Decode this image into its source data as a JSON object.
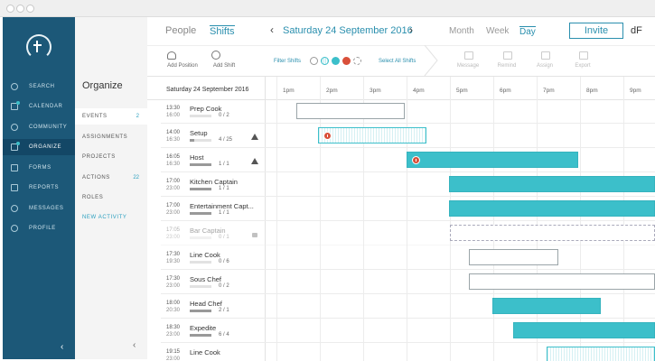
{
  "nav": [
    {
      "label": "SEARCH"
    },
    {
      "label": "CALENDAR"
    },
    {
      "label": "COMMUNITY"
    },
    {
      "label": "ORGANIZE"
    },
    {
      "label": "FORMS"
    },
    {
      "label": "REPORTS"
    },
    {
      "label": "MESSAGES"
    },
    {
      "label": "PROFILE"
    }
  ],
  "panel": {
    "title": "Organize",
    "items": [
      {
        "label": "EVENTS",
        "count": 2
      },
      {
        "label": "ASSIGNMENTS"
      },
      {
        "label": "PROJECTS"
      },
      {
        "label": "ACTIONS",
        "count": 22
      },
      {
        "label": "ROLES"
      },
      {
        "label": "NEW ACTIVITY"
      }
    ]
  },
  "topbar": {
    "tabs": [
      "People",
      "Shifts"
    ],
    "date": "Saturday 24 September 2016",
    "views": [
      "Month",
      "Week",
      "Day"
    ],
    "invite": "Invite",
    "account": "dF"
  },
  "toolbar": {
    "add_position": "Add Position",
    "add_shift": "Add Shift",
    "filter": "Filter Shifts",
    "select_all": "Select All Shifts",
    "actions": [
      "Message",
      "Remind",
      "Assign",
      "Export"
    ]
  },
  "grid": {
    "date": "Saturday 24 September 2016",
    "hours": [
      "1pm",
      "2pm",
      "3pm",
      "4pm",
      "5pm",
      "6pm",
      "7pm",
      "8pm",
      "9pm"
    ],
    "rows": [
      {
        "start": "13:30",
        "end": "16:00",
        "role": "Prep Cook",
        "staffing": "0 / 2"
      },
      {
        "start": "14:00",
        "end": "16:30",
        "role": "Setup",
        "staffing": "4 / 25"
      },
      {
        "start": "16:05",
        "end": "16:30",
        "role": "Host",
        "staffing": "1 / 1"
      },
      {
        "start": "17:00",
        "end": "23:00",
        "role": "Kitchen Captain",
        "staffing": "1 / 1"
      },
      {
        "start": "17:00",
        "end": "23:00",
        "role": "Entertainment Capt...",
        "staffing": "1 / 1"
      },
      {
        "start": "17:05",
        "end": "23:00",
        "role": "Bar Captain",
        "staffing": "0 / 1"
      },
      {
        "start": "17:30",
        "end": "19:30",
        "role": "Line Cook",
        "staffing": "0 / 6"
      },
      {
        "start": "17:30",
        "end": "23:00",
        "role": "Sous Chef",
        "staffing": "0 / 2"
      },
      {
        "start": "18:00",
        "end": "20:30",
        "role": "Head Chef",
        "staffing": "2 / 1"
      },
      {
        "start": "18:30",
        "end": "23:00",
        "role": "Expedite",
        "staffing": "6 / 4"
      },
      {
        "start": "19:15",
        "end": "23:00",
        "role": "Line Cook",
        "staffing": ""
      }
    ]
  }
}
